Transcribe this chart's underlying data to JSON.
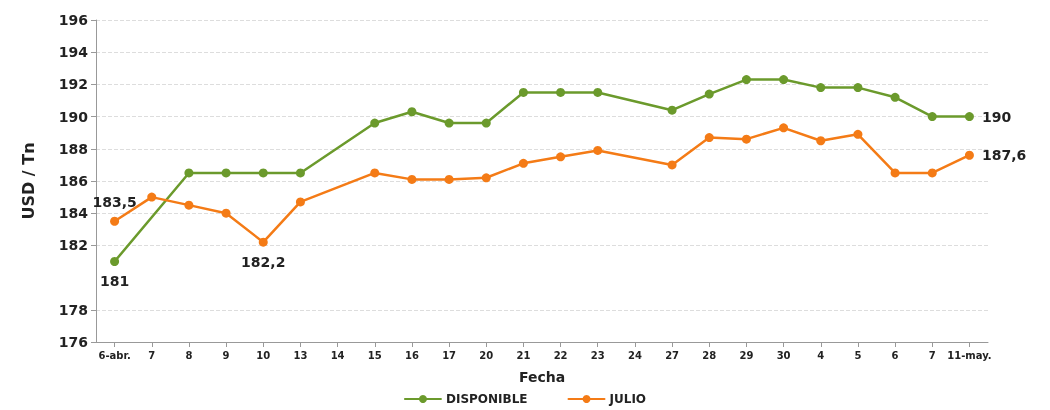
{
  "chart_data": {
    "type": "line",
    "xlabel": "Fecha",
    "ylabel": "USD / Tn",
    "categories": [
      "6-abr.",
      "7",
      "8",
      "9",
      "10",
      "13",
      "14",
      "15",
      "16",
      "17",
      "20",
      "21",
      "22",
      "23",
      "24",
      "27",
      "28",
      "29",
      "30",
      "4",
      "5",
      "6",
      "7",
      "11-may."
    ],
    "series": [
      {
        "name": "DISPONIBLE",
        "color": "#6b9a2c",
        "values": [
          181,
          null,
          186.5,
          186.5,
          186.5,
          186.5,
          null,
          189.6,
          190.3,
          189.6,
          189.6,
          191.5,
          191.5,
          191.5,
          null,
          190.4,
          191.4,
          192.3,
          192.3,
          191.8,
          191.8,
          191.2,
          190,
          190
        ],
        "value_labels": [
          "181",
          null,
          null,
          null,
          null,
          null,
          null,
          null,
          null,
          null,
          null,
          null,
          null,
          null,
          null,
          null,
          null,
          null,
          null,
          null,
          null,
          null,
          null,
          "190"
        ]
      },
      {
        "name": "JULIO",
        "color": "#f47b16",
        "values": [
          183.5,
          185,
          184.5,
          184,
          182.2,
          184.7,
          null,
          186.5,
          186.1,
          186.1,
          186.2,
          187.1,
          187.5,
          187.9,
          null,
          187,
          188.7,
          188.6,
          189.3,
          188.5,
          188.9,
          186.5,
          186.5,
          187.6
        ],
        "value_labels": [
          "183,5",
          null,
          null,
          null,
          "182,2",
          null,
          null,
          null,
          null,
          null,
          null,
          null,
          null,
          null,
          null,
          null,
          null,
          null,
          null,
          null,
          null,
          null,
          null,
          "187,6"
        ]
      }
    ],
    "ylim": [
      176,
      196
    ],
    "yticks": [
      176,
      178,
      182,
      184,
      186,
      188,
      190,
      192,
      194,
      196
    ],
    "grid": "y",
    "legend": "bottom",
    "marker": "circle",
    "line_style": "solid"
  }
}
